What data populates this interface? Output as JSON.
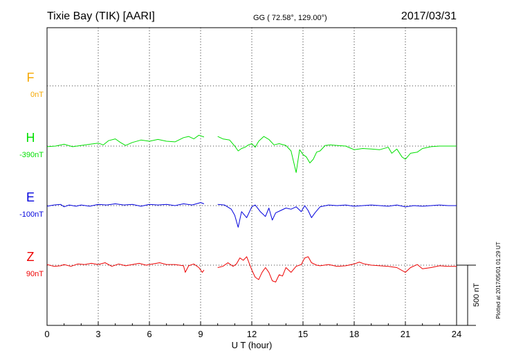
{
  "header": {
    "station": "Tixie Bay (TIK)  [AARI]",
    "coords": "GG ( 72.58°, 129.00°)",
    "date": "2017/03/31"
  },
  "footer_note": "Plotted at 2017/05/01 01:29 UT",
  "scale_label": "500 nT",
  "chart_data": {
    "type": "line",
    "xlabel": "U T (hour)",
    "xlim": [
      0,
      24
    ],
    "xticks": [
      0,
      3,
      6,
      9,
      12,
      15,
      18,
      21,
      24
    ],
    "grid": true,
    "series": [
      {
        "name": "F",
        "baseline_label": "0nT",
        "color": "#f5a800",
        "points": []
      },
      {
        "name": "H",
        "baseline_label": "-390nT",
        "color": "#00e000",
        "points": [
          [
            0,
            -5
          ],
          [
            0.5,
            0
          ],
          [
            1,
            15
          ],
          [
            1.5,
            -5
          ],
          [
            2,
            5
          ],
          [
            2.5,
            15
          ],
          [
            3,
            25
          ],
          [
            3.3,
            10
          ],
          [
            3.6,
            45
          ],
          [
            4,
            60
          ],
          [
            4.3,
            30
          ],
          [
            4.6,
            5
          ],
          [
            5,
            30
          ],
          [
            5.5,
            50
          ],
          [
            6,
            40
          ],
          [
            6.5,
            55
          ],
          [
            7,
            40
          ],
          [
            7.5,
            35
          ],
          [
            8,
            70
          ],
          [
            8.3,
            80
          ],
          [
            8.6,
            60
          ],
          [
            8.9,
            90
          ],
          [
            9.2,
            75
          ],
          [
            10,
            80
          ],
          [
            10.3,
            60
          ],
          [
            10.7,
            50
          ],
          [
            11,
            0
          ],
          [
            11.2,
            -40
          ],
          [
            11.4,
            -20
          ],
          [
            11.6,
            -10
          ],
          [
            11.8,
            10
          ],
          [
            12,
            20
          ],
          [
            12.2,
            -10
          ],
          [
            12.4,
            40
          ],
          [
            12.7,
            80
          ],
          [
            13,
            55
          ],
          [
            13.3,
            10
          ],
          [
            13.6,
            20
          ],
          [
            14,
            5
          ],
          [
            14.3,
            -40
          ],
          [
            14.6,
            -220
          ],
          [
            14.8,
            -30
          ],
          [
            15,
            -70
          ],
          [
            15.2,
            -90
          ],
          [
            15.4,
            -140
          ],
          [
            15.6,
            -110
          ],
          [
            15.8,
            -50
          ],
          [
            16,
            -40
          ],
          [
            16.3,
            5
          ],
          [
            16.6,
            10
          ],
          [
            17,
            5
          ],
          [
            17.5,
            0
          ],
          [
            18,
            -30
          ],
          [
            18.5,
            -20
          ],
          [
            19,
            -25
          ],
          [
            19.5,
            -30
          ],
          [
            20,
            -10
          ],
          [
            20.2,
            -60
          ],
          [
            20.5,
            -25
          ],
          [
            20.8,
            -90
          ],
          [
            21,
            -110
          ],
          [
            21.3,
            -60
          ],
          [
            21.7,
            -50
          ],
          [
            22,
            -20
          ],
          [
            22.5,
            -5
          ],
          [
            23,
            0
          ],
          [
            23.5,
            0
          ],
          [
            24,
            0
          ]
        ]
      },
      {
        "name": "E",
        "baseline_label": "-100nT",
        "color": "#0000dd",
        "points": [
          [
            0,
            -5
          ],
          [
            0.4,
            5
          ],
          [
            0.8,
            10
          ],
          [
            1,
            -10
          ],
          [
            1.3,
            5
          ],
          [
            1.7,
            -5
          ],
          [
            2,
            5
          ],
          [
            2.5,
            -5
          ],
          [
            3,
            10
          ],
          [
            3.5,
            5
          ],
          [
            4,
            15
          ],
          [
            4.5,
            5
          ],
          [
            5,
            10
          ],
          [
            5.5,
            -5
          ],
          [
            6,
            10
          ],
          [
            6.5,
            5
          ],
          [
            7,
            10
          ],
          [
            7.5,
            0
          ],
          [
            8,
            15
          ],
          [
            8.5,
            5
          ],
          [
            9,
            25
          ],
          [
            9.2,
            15
          ],
          [
            10,
            10
          ],
          [
            10.4,
            5
          ],
          [
            10.8,
            -30
          ],
          [
            11,
            -80
          ],
          [
            11.2,
            -180
          ],
          [
            11.4,
            -50
          ],
          [
            11.7,
            -100
          ],
          [
            12,
            -10
          ],
          [
            12.2,
            5
          ],
          [
            12.5,
            -50
          ],
          [
            12.8,
            -90
          ],
          [
            13,
            -20
          ],
          [
            13.2,
            -120
          ],
          [
            13.4,
            -60
          ],
          [
            13.7,
            -40
          ],
          [
            14,
            -20
          ],
          [
            14.3,
            -30
          ],
          [
            14.6,
            -10
          ],
          [
            14.9,
            -50
          ],
          [
            15.1,
            0
          ],
          [
            15.3,
            -40
          ],
          [
            15.5,
            -100
          ],
          [
            15.7,
            -60
          ],
          [
            16,
            -10
          ],
          [
            16.5,
            5
          ],
          [
            17,
            0
          ],
          [
            17.5,
            5
          ],
          [
            18,
            -5
          ],
          [
            18.5,
            0
          ],
          [
            19,
            5
          ],
          [
            19.5,
            0
          ],
          [
            20,
            -5
          ],
          [
            20.5,
            5
          ],
          [
            21,
            -10
          ],
          [
            21.5,
            0
          ],
          [
            22,
            -5
          ],
          [
            22.5,
            0
          ],
          [
            23,
            5
          ],
          [
            23.5,
            0
          ],
          [
            24,
            0
          ]
        ]
      },
      {
        "name": "Z",
        "baseline_label": "90nT",
        "color": "#ee0000",
        "points": [
          [
            0,
            5
          ],
          [
            0.4,
            -10
          ],
          [
            0.8,
            -5
          ],
          [
            1,
            5
          ],
          [
            1.4,
            -10
          ],
          [
            1.8,
            10
          ],
          [
            2.2,
            5
          ],
          [
            2.6,
            15
          ],
          [
            3,
            5
          ],
          [
            3.4,
            20
          ],
          [
            3.8,
            -10
          ],
          [
            4.2,
            10
          ],
          [
            4.6,
            -5
          ],
          [
            5,
            5
          ],
          [
            5.4,
            15
          ],
          [
            5.8,
            0
          ],
          [
            6.2,
            10
          ],
          [
            6.6,
            20
          ],
          [
            7,
            5
          ],
          [
            7.5,
            5
          ],
          [
            8,
            -5
          ],
          [
            8.1,
            -60
          ],
          [
            8.3,
            -5
          ],
          [
            8.6,
            10
          ],
          [
            8.9,
            -20
          ],
          [
            9.1,
            -60
          ],
          [
            9.2,
            -40
          ],
          [
            10,
            -20
          ],
          [
            10.3,
            -10
          ],
          [
            10.6,
            20
          ],
          [
            10.9,
            -10
          ],
          [
            11.1,
            10
          ],
          [
            11.3,
            60
          ],
          [
            11.5,
            40
          ],
          [
            11.7,
            70
          ],
          [
            12,
            -40
          ],
          [
            12.2,
            -100
          ],
          [
            12.4,
            -120
          ],
          [
            12.6,
            -60
          ],
          [
            12.8,
            -20
          ],
          [
            13,
            -60
          ],
          [
            13.2,
            -130
          ],
          [
            13.4,
            -140
          ],
          [
            13.6,
            -80
          ],
          [
            13.8,
            -90
          ],
          [
            14,
            -20
          ],
          [
            14.3,
            -60
          ],
          [
            14.6,
            -10
          ],
          [
            14.9,
            5
          ],
          [
            15.1,
            60
          ],
          [
            15.3,
            70
          ],
          [
            15.5,
            20
          ],
          [
            15.8,
            0
          ],
          [
            16,
            -5
          ],
          [
            16.5,
            5
          ],
          [
            17,
            -10
          ],
          [
            17.5,
            -5
          ],
          [
            18,
            10
          ],
          [
            18.3,
            25
          ],
          [
            18.6,
            10
          ],
          [
            19,
            0
          ],
          [
            19.5,
            -5
          ],
          [
            20,
            -10
          ],
          [
            20.5,
            -20
          ],
          [
            21,
            -60
          ],
          [
            21.3,
            -20
          ],
          [
            21.7,
            5
          ],
          [
            22,
            -30
          ],
          [
            22.5,
            -20
          ],
          [
            23,
            -5
          ],
          [
            23.5,
            -10
          ],
          [
            24,
            -10
          ]
        ]
      }
    ]
  }
}
